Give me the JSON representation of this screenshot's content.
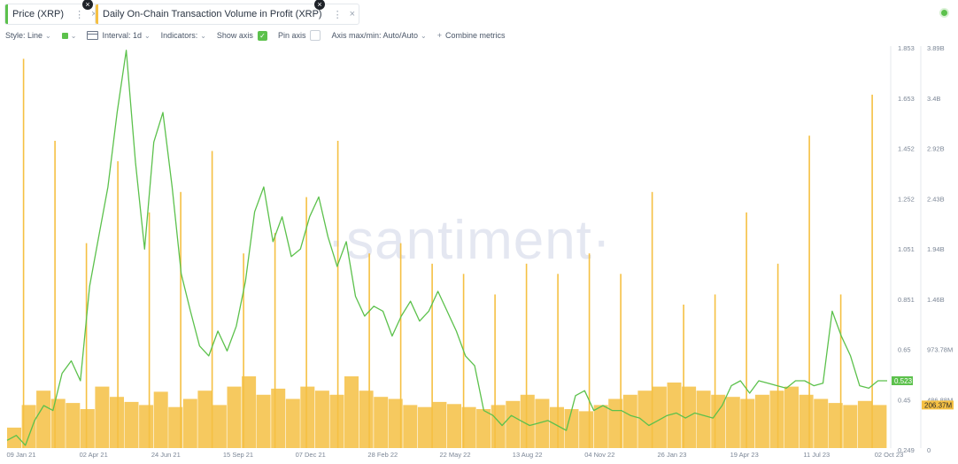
{
  "metrics": [
    {
      "label": "Price (XRP)",
      "color": "#5cc14c"
    },
    {
      "label": "Daily On-Chain Transaction Volume in Profit (XRP)",
      "color": "#f5c043"
    }
  ],
  "toolbar": {
    "style": "Style: Line",
    "interval": "Interval: 1d",
    "indicators": "Indicators:",
    "show_axis": "Show axis",
    "pin_axis": "Pin axis",
    "axis_minmax": "Axis max/min: Auto/Auto",
    "combine": "Combine metrics"
  },
  "watermark": "·santiment·",
  "chart_data": {
    "type": "line",
    "title": "",
    "x_ticks": [
      "09 Jan 21",
      "02 Apr 21",
      "24 Jun 21",
      "15 Sep 21",
      "07 Dec 21",
      "28 Feb 22",
      "22 May 22",
      "13 Aug 22",
      "04 Nov 22",
      "26 Jan 23",
      "19 Apr 23",
      "11 Jul 23",
      "02 Oct 23"
    ],
    "price_axis": {
      "ticks": [
        "1.853",
        "1.653",
        "1.452",
        "1.252",
        "1.051",
        "0.851",
        "0.65",
        "0.45",
        "0.249"
      ],
      "range": [
        0.249,
        1.853
      ],
      "current_label": "0.523"
    },
    "volume_axis": {
      "ticks": [
        "3.89B",
        "3.4B",
        "2.92B",
        "2.43B",
        "1.94B",
        "1.46B",
        "973.78M",
        "486.88M",
        "0"
      ],
      "range": [
        0,
        3890000000
      ],
      "current_label": "206.37M"
    },
    "series": [
      {
        "name": "Price (XRP)",
        "color": "#5cc14c",
        "date_range": [
          "09 Jan 21",
          "02 Oct 23"
        ],
        "values": [
          0.28,
          0.3,
          0.26,
          0.36,
          0.42,
          0.4,
          0.55,
          0.6,
          0.52,
          0.9,
          1.1,
          1.3,
          1.6,
          1.85,
          1.4,
          1.05,
          1.48,
          1.6,
          1.3,
          0.95,
          0.8,
          0.66,
          0.62,
          0.72,
          0.64,
          0.74,
          0.92,
          1.2,
          1.3,
          1.08,
          1.18,
          1.02,
          1.05,
          1.18,
          1.26,
          1.1,
          0.98,
          1.08,
          0.86,
          0.78,
          0.82,
          0.8,
          0.7,
          0.78,
          0.84,
          0.76,
          0.8,
          0.88,
          0.8,
          0.72,
          0.62,
          0.58,
          0.4,
          0.38,
          0.34,
          0.38,
          0.36,
          0.34,
          0.35,
          0.36,
          0.34,
          0.32,
          0.46,
          0.48,
          0.4,
          0.42,
          0.4,
          0.4,
          0.38,
          0.37,
          0.34,
          0.36,
          0.38,
          0.39,
          0.37,
          0.39,
          0.38,
          0.37,
          0.42,
          0.5,
          0.52,
          0.47,
          0.52,
          0.51,
          0.5,
          0.49,
          0.52,
          0.52,
          0.5,
          0.51,
          0.8,
          0.7,
          0.62,
          0.5,
          0.49,
          0.52,
          0.52
        ]
      },
      {
        "name": "Daily On-Chain Transaction Volume in Profit (XRP)",
        "color": "#f5c043",
        "baseline_values": [
          200000000,
          420000000,
          560000000,
          480000000,
          440000000,
          380000000,
          600000000,
          500000000,
          450000000,
          420000000,
          550000000,
          400000000,
          480000000,
          560000000,
          420000000,
          600000000,
          700000000,
          520000000,
          580000000,
          480000000,
          600000000,
          560000000,
          520000000,
          700000000,
          560000000,
          500000000,
          480000000,
          420000000,
          400000000,
          450000000,
          430000000,
          400000000,
          380000000,
          420000000,
          460000000,
          520000000,
          480000000,
          400000000,
          380000000,
          360000000,
          420000000,
          480000000,
          520000000,
          560000000,
          600000000,
          640000000,
          600000000,
          560000000,
          520000000,
          500000000,
          480000000,
          520000000,
          560000000,
          600000000,
          520000000,
          480000000,
          440000000,
          420000000,
          460000000,
          420000000
        ],
        "spikes": [
          {
            "date": "Jan 21",
            "value": 3800000000
          },
          {
            "date": "Feb 21",
            "value": 3000000000
          },
          {
            "date": "Apr 21",
            "value": 2000000000
          },
          {
            "date": "Jun 21",
            "value": 2800000000
          },
          {
            "date": "Jul 21",
            "value": 2300000000
          },
          {
            "date": "Aug 21",
            "value": 2500000000
          },
          {
            "date": "Sep 21",
            "value": 2900000000
          },
          {
            "date": "Nov 21",
            "value": 1900000000
          },
          {
            "date": "Dec 21",
            "value": 2100000000
          },
          {
            "date": "Feb 22",
            "value": 2450000000
          },
          {
            "date": "Mar 22",
            "value": 3000000000
          },
          {
            "date": "Apr 22",
            "value": 1900000000
          },
          {
            "date": "May 22",
            "value": 2000000000
          },
          {
            "date": "Jun 22",
            "value": 1800000000
          },
          {
            "date": "Aug 22",
            "value": 1700000000
          },
          {
            "date": "Sep 22",
            "value": 1500000000
          },
          {
            "date": "Oct 22",
            "value": 1800000000
          },
          {
            "date": "Nov 22",
            "value": 1700000000
          },
          {
            "date": "Dec 22",
            "value": 1900000000
          },
          {
            "date": "Jan 23",
            "value": 1700000000
          },
          {
            "date": "Mar 23",
            "value": 2500000000
          },
          {
            "date": "Apr 23",
            "value": 1400000000
          },
          {
            "date": "May 23",
            "value": 1500000000
          },
          {
            "date": "Jun 23",
            "value": 2300000000
          },
          {
            "date": "Jul 23",
            "value": 1800000000
          },
          {
            "date": "Aug 23",
            "value": 3050000000
          },
          {
            "date": "Sep 23",
            "value": 1500000000
          },
          {
            "date": "Oct 23",
            "value": 3450000000
          }
        ]
      }
    ],
    "grid": false,
    "legend": "top-left"
  }
}
